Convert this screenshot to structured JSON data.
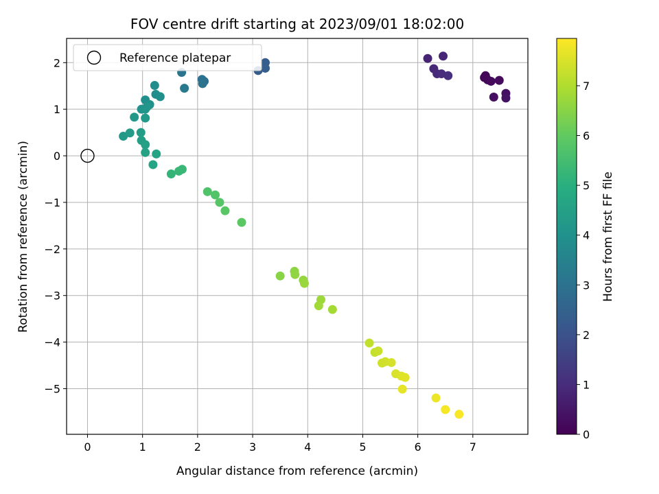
{
  "chart_data": {
    "type": "scatter",
    "title": "FOV centre drift starting at 2023/09/01 18:02:00",
    "xlabel": "Angular distance from reference (arcmin)",
    "ylabel": "Rotation from reference (arcmin)",
    "xlim": [
      -0.38,
      8.0
    ],
    "ylim": [
      -5.98,
      2.52
    ],
    "x_ticks": [
      0,
      1,
      2,
      3,
      4,
      5,
      6,
      7
    ],
    "x_tick_labels": [
      "0",
      "1",
      "2",
      "3",
      "4",
      "5",
      "6",
      "7"
    ],
    "y_ticks": [
      2,
      1,
      0,
      -1,
      -2,
      -3,
      -4,
      -5
    ],
    "y_tick_labels": [
      "2",
      "1",
      "0",
      "−1",
      "−2",
      "−3",
      "−4",
      "−5"
    ],
    "grid": true,
    "legend": {
      "placement": "top-left",
      "entries": [
        "Reference platepar"
      ]
    },
    "reference_point": {
      "x": 0,
      "y": 0
    },
    "colorbar": {
      "label": "Hours from first FF file",
      "colormap": "viridis",
      "range": [
        0,
        7.95
      ],
      "ticks": [
        0,
        1,
        2,
        3,
        4,
        5,
        6,
        7
      ],
      "tick_labels": [
        "0",
        "1",
        "2",
        "3",
        "4",
        "5",
        "6",
        "7"
      ]
    },
    "points": [
      {
        "x": 7.23,
        "y": 1.72,
        "t": 0.05
      },
      {
        "x": 7.21,
        "y": 1.68,
        "t": 0.1
      },
      {
        "x": 7.27,
        "y": 1.63,
        "t": 0.15
      },
      {
        "x": 7.33,
        "y": 1.6,
        "t": 0.2
      },
      {
        "x": 7.48,
        "y": 1.62,
        "t": 0.25
      },
      {
        "x": 7.38,
        "y": 1.26,
        "t": 0.3
      },
      {
        "x": 7.6,
        "y": 1.34,
        "t": 0.35
      },
      {
        "x": 7.6,
        "y": 1.24,
        "t": 0.4
      },
      {
        "x": 6.18,
        "y": 2.09,
        "t": 0.8
      },
      {
        "x": 6.46,
        "y": 2.14,
        "t": 0.85
      },
      {
        "x": 6.29,
        "y": 1.87,
        "t": 0.9
      },
      {
        "x": 6.35,
        "y": 1.76,
        "t": 0.95
      },
      {
        "x": 6.43,
        "y": 1.76,
        "t": 1.0
      },
      {
        "x": 6.55,
        "y": 1.72,
        "t": 1.05
      },
      {
        "x": 3.1,
        "y": 1.83,
        "t": 2.3
      },
      {
        "x": 3.23,
        "y": 2.0,
        "t": 2.35
      },
      {
        "x": 3.23,
        "y": 1.88,
        "t": 2.4
      },
      {
        "x": 2.12,
        "y": 1.6,
        "t": 2.9
      },
      {
        "x": 2.08,
        "y": 1.64,
        "t": 2.95
      },
      {
        "x": 2.09,
        "y": 1.55,
        "t": 3.0
      },
      {
        "x": 1.71,
        "y": 1.79,
        "t": 3.05
      },
      {
        "x": 1.76,
        "y": 1.45,
        "t": 3.25
      },
      {
        "x": 1.22,
        "y": 1.51,
        "t": 3.8
      },
      {
        "x": 1.24,
        "y": 1.32,
        "t": 3.85
      },
      {
        "x": 1.32,
        "y": 1.27,
        "t": 3.9
      },
      {
        "x": 1.05,
        "y": 1.2,
        "t": 3.95
      },
      {
        "x": 1.13,
        "y": 1.1,
        "t": 4.0
      },
      {
        "x": 0.98,
        "y": 1.0,
        "t": 4.05
      },
      {
        "x": 1.05,
        "y": 1.0,
        "t": 4.1
      },
      {
        "x": 1.08,
        "y": 1.05,
        "t": 4.15
      },
      {
        "x": 0.85,
        "y": 0.83,
        "t": 4.2
      },
      {
        "x": 1.05,
        "y": 0.81,
        "t": 4.25
      },
      {
        "x": 0.65,
        "y": 0.42,
        "t": 4.3
      },
      {
        "x": 0.77,
        "y": 0.49,
        "t": 4.35
      },
      {
        "x": 0.97,
        "y": 0.5,
        "t": 4.4
      },
      {
        "x": 0.98,
        "y": 0.33,
        "t": 4.45
      },
      {
        "x": 1.05,
        "y": 0.24,
        "t": 4.5
      },
      {
        "x": 1.05,
        "y": 0.07,
        "t": 4.55
      },
      {
        "x": 1.25,
        "y": 0.04,
        "t": 4.6
      },
      {
        "x": 1.19,
        "y": -0.19,
        "t": 4.65
      },
      {
        "x": 1.52,
        "y": -0.39,
        "t": 5.2
      },
      {
        "x": 1.66,
        "y": -0.33,
        "t": 5.25
      },
      {
        "x": 1.72,
        "y": -0.29,
        "t": 5.3
      },
      {
        "x": 2.18,
        "y": -0.77,
        "t": 5.7
      },
      {
        "x": 2.32,
        "y": -0.84,
        "t": 5.75
      },
      {
        "x": 2.4,
        "y": -1.0,
        "t": 5.8
      },
      {
        "x": 2.5,
        "y": -1.18,
        "t": 5.85
      },
      {
        "x": 2.8,
        "y": -1.43,
        "t": 5.9
      },
      {
        "x": 3.5,
        "y": -2.58,
        "t": 6.5
      },
      {
        "x": 3.76,
        "y": -2.48,
        "t": 6.55
      },
      {
        "x": 3.77,
        "y": -2.55,
        "t": 6.6
      },
      {
        "x": 3.92,
        "y": -2.67,
        "t": 6.65
      },
      {
        "x": 3.94,
        "y": -2.74,
        "t": 6.7
      },
      {
        "x": 4.24,
        "y": -3.09,
        "t": 6.75
      },
      {
        "x": 4.2,
        "y": -3.22,
        "t": 6.8
      },
      {
        "x": 4.45,
        "y": -3.3,
        "t": 6.85
      },
      {
        "x": 5.12,
        "y": -4.02,
        "t": 7.2
      },
      {
        "x": 5.22,
        "y": -4.22,
        "t": 7.25
      },
      {
        "x": 5.28,
        "y": -4.19,
        "t": 7.3
      },
      {
        "x": 5.35,
        "y": -4.45,
        "t": 7.35
      },
      {
        "x": 5.41,
        "y": -4.42,
        "t": 7.4
      },
      {
        "x": 5.52,
        "y": -4.44,
        "t": 7.45
      },
      {
        "x": 5.6,
        "y": -4.68,
        "t": 7.5
      },
      {
        "x": 5.7,
        "y": -4.73,
        "t": 7.55
      },
      {
        "x": 5.77,
        "y": -4.76,
        "t": 7.6
      },
      {
        "x": 5.72,
        "y": -5.01,
        "t": 7.65
      },
      {
        "x": 6.33,
        "y": -5.2,
        "t": 7.75
      },
      {
        "x": 6.5,
        "y": -5.45,
        "t": 7.85
      },
      {
        "x": 6.75,
        "y": -5.55,
        "t": 7.9
      }
    ]
  }
}
